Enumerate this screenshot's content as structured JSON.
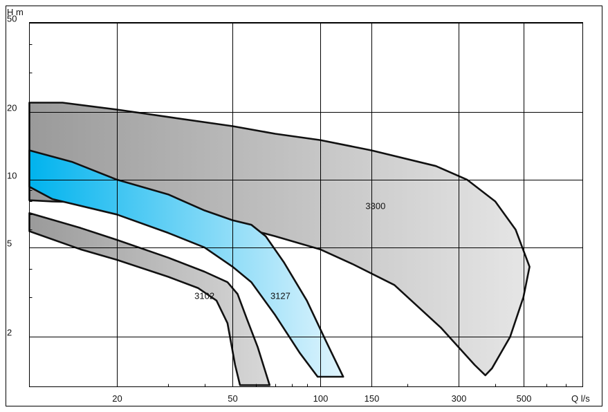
{
  "chart_data": {
    "type": "area",
    "xlabel": "Q  l/s",
    "ylabel": "H m",
    "x_scale": "log",
    "y_scale": "log",
    "xlim": [
      10,
      800
    ],
    "ylim": [
      1.2,
      50
    ],
    "grid": true,
    "x_ticks": [
      {
        "value": 20,
        "label": "20"
      },
      {
        "value": 50,
        "label": "50"
      },
      {
        "value": 100,
        "label": "100"
      },
      {
        "value": 150,
        "label": "150"
      },
      {
        "value": 300,
        "label": "300"
      },
      {
        "value": 500,
        "label": "500"
      }
    ],
    "y_ticks": [
      {
        "value": 50,
        "label": "50"
      },
      {
        "value": 20,
        "label": "20"
      },
      {
        "value": 10,
        "label": "10"
      },
      {
        "value": 5,
        "label": "5"
      },
      {
        "value": 2,
        "label": "2"
      }
    ],
    "series": [
      {
        "name": "3300",
        "label_at": [
          155,
          7.4
        ],
        "gradient": [
          "#9a9a9a",
          "#e6e6e6"
        ],
        "outline": [
          [
            10,
            22
          ],
          [
            13,
            22
          ],
          [
            20,
            20.5
          ],
          [
            30,
            19
          ],
          [
            50,
            17.3
          ],
          [
            70,
            16
          ],
          [
            100,
            15
          ],
          [
            150,
            13.5
          ],
          [
            250,
            11.5
          ],
          [
            320,
            10
          ],
          [
            400,
            8
          ],
          [
            470,
            6
          ],
          [
            525,
            4.1
          ],
          [
            500,
            3
          ],
          [
            450,
            2
          ],
          [
            390,
            1.45
          ],
          [
            370,
            1.35
          ],
          [
            340,
            1.5
          ],
          [
            260,
            2.2
          ],
          [
            180,
            3.4
          ],
          [
            130,
            4.2
          ],
          [
            100,
            4.9
          ],
          [
            70,
            5.6
          ],
          [
            50,
            6.3
          ],
          [
            35,
            7
          ],
          [
            25,
            7.4
          ],
          [
            18,
            7.9
          ],
          [
            12,
            8
          ],
          [
            10,
            8.1
          ]
        ]
      },
      {
        "name": "3127",
        "label_at": [
          73,
          2.95
        ],
        "gradient": [
          "#00b3ee",
          "#e0f4fd"
        ],
        "outline": [
          [
            10,
            13.5
          ],
          [
            14,
            12
          ],
          [
            20,
            10
          ],
          [
            30,
            8.6
          ],
          [
            40,
            7.3
          ],
          [
            50,
            6.6
          ],
          [
            58,
            6.3
          ],
          [
            65,
            5.6
          ],
          [
            75,
            4.3
          ],
          [
            90,
            2.9
          ],
          [
            105,
            1.9
          ],
          [
            120,
            1.33
          ],
          [
            98,
            1.33
          ],
          [
            85,
            1.7
          ],
          [
            70,
            2.5
          ],
          [
            58,
            3.5
          ],
          [
            50,
            4.1
          ],
          [
            40,
            5
          ],
          [
            30,
            5.8
          ],
          [
            20,
            7
          ],
          [
            12,
            8.2
          ],
          [
            10,
            9.3
          ]
        ]
      },
      {
        "name": "3102",
        "label_at": [
          40,
          2.95
        ],
        "gradient": [
          "#9a9a9a",
          "#d8d8d8"
        ],
        "outline": [
          [
            10,
            7.1
          ],
          [
            15,
            6.1
          ],
          [
            20,
            5.4
          ],
          [
            30,
            4.5
          ],
          [
            40,
            3.9
          ],
          [
            48,
            3.5
          ],
          [
            52,
            3.1
          ],
          [
            56,
            2.4
          ],
          [
            61,
            1.8
          ],
          [
            67,
            1.22
          ],
          [
            53,
            1.22
          ],
          [
            51,
            1.5
          ],
          [
            48,
            2.3
          ],
          [
            44,
            2.9
          ],
          [
            38,
            3.3
          ],
          [
            30,
            3.7
          ],
          [
            20,
            4.4
          ],
          [
            15,
            4.9
          ],
          [
            10,
            5.9
          ]
        ]
      }
    ]
  }
}
